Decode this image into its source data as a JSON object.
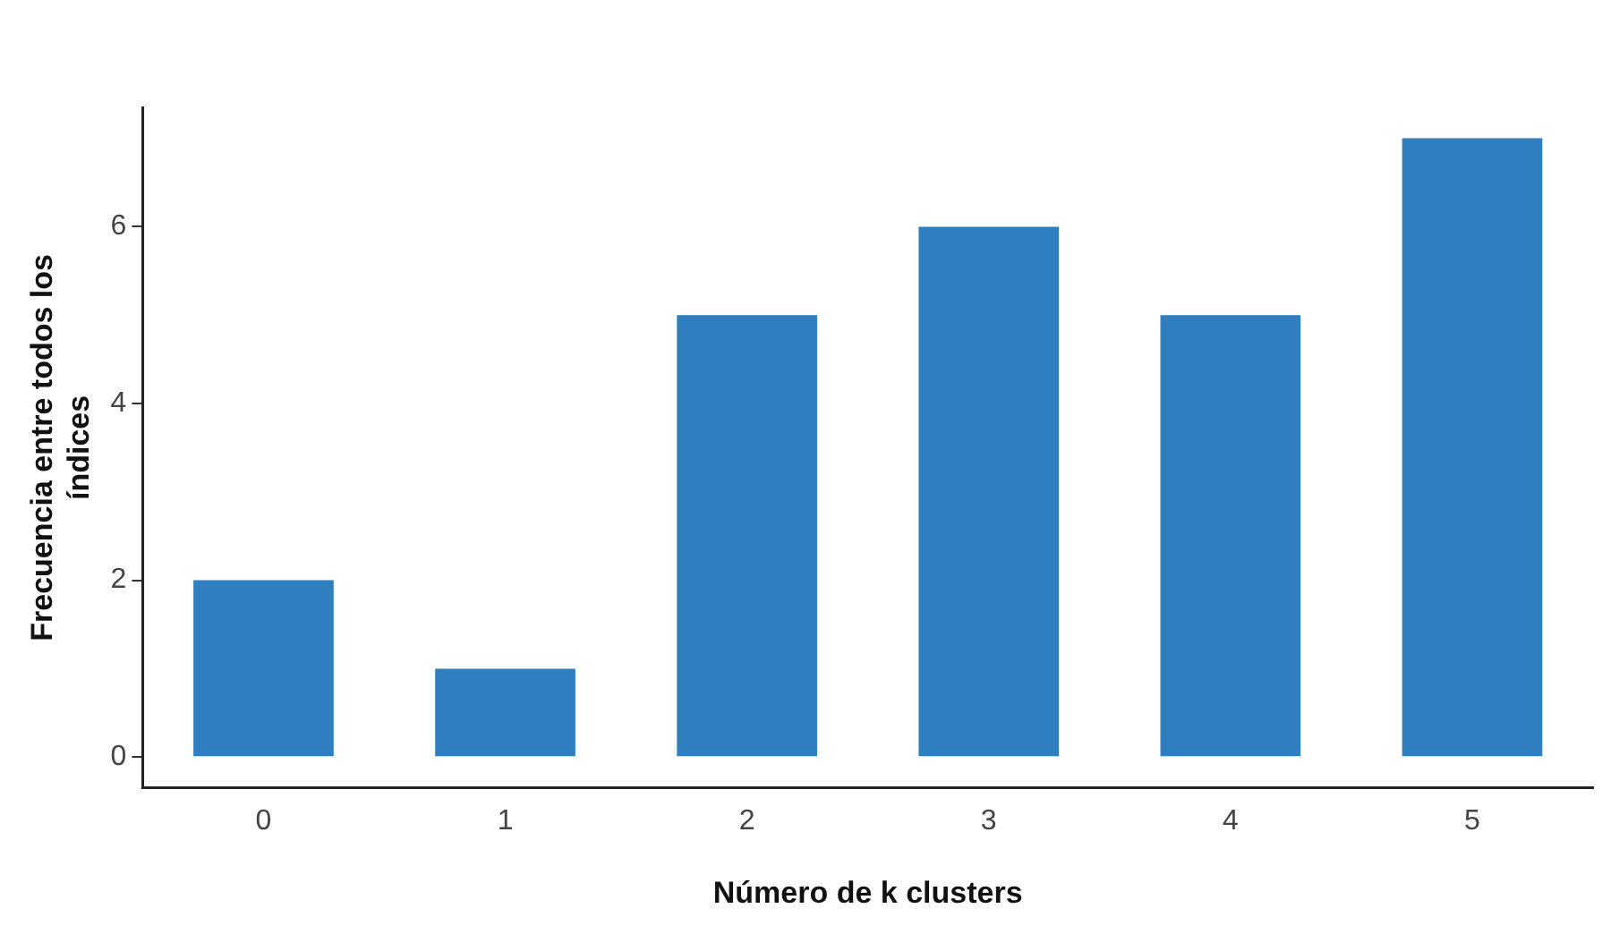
{
  "chart_data": {
    "type": "bar",
    "xlabel": "Número de k clusters",
    "ylabel": "Frecuencia entre todos los índices",
    "categories": [
      "0",
      "1",
      "2",
      "3",
      "4",
      "5"
    ],
    "values": [
      2,
      1,
      5,
      6,
      5,
      7
    ],
    "color": "#2f7ec0",
    "ylim": [
      -0.35,
      7.35
    ],
    "yticks": [
      0,
      2,
      4,
      6
    ],
    "grid": false
  }
}
